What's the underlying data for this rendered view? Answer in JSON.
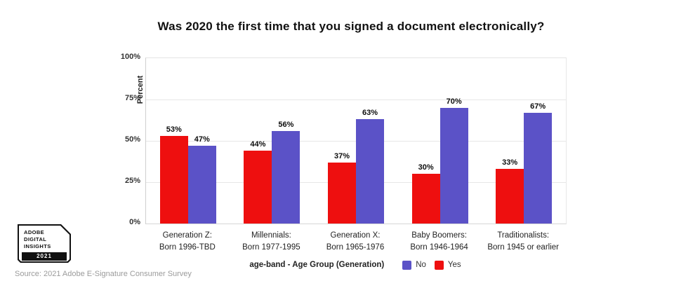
{
  "title": "Was 2020 the first time that you signed a document electronically?",
  "ylabel": "Percent",
  "chart_data": {
    "type": "bar",
    "title": "Was 2020 the first time that you signed a document electronically?",
    "xlabel": "age-band - Age Group (Generation)",
    "ylabel": "Percent",
    "ylim": [
      0,
      100
    ],
    "grid": true,
    "legend_position": "bottom",
    "y_ticks": [
      {
        "value": 100,
        "label": "100%"
      },
      {
        "value": 75,
        "label": "75%"
      },
      {
        "value": 50,
        "label": "50%"
      },
      {
        "value": 25,
        "label": "25%"
      },
      {
        "value": 0,
        "label": "0%"
      }
    ],
    "categories": [
      {
        "line1": "Generation Z:",
        "line2": "Born 1996-TBD"
      },
      {
        "line1": "Millennials:",
        "line2": "Born 1977-1995"
      },
      {
        "line1": "Generation X:",
        "line2": "Born 1965-1976"
      },
      {
        "line1": "Baby Boomers:",
        "line2": "Born 1946-1964"
      },
      {
        "line1": "Traditionalists:",
        "line2": "Born 1945 or earlier"
      }
    ],
    "series": [
      {
        "name": "Yes",
        "color": "#ee0f0f",
        "values": [
          53,
          44,
          37,
          30,
          33
        ],
        "labels": [
          "53%",
          "44%",
          "37%",
          "30%",
          "33%"
        ]
      },
      {
        "name": "No",
        "color": "#5b52c7",
        "values": [
          47,
          56,
          63,
          70,
          67
        ],
        "labels": [
          "47%",
          "56%",
          "63%",
          "70%",
          "67%"
        ]
      }
    ]
  },
  "legend": {
    "title": "age-band - Age Group (Generation)",
    "items": [
      {
        "label": "No",
        "color": "#5b52c7"
      },
      {
        "label": "Yes",
        "color": "#ee0f0f"
      }
    ]
  },
  "badge": {
    "line1": "ADOBE",
    "line2": "DIGITAL",
    "line3": "INSIGHTS",
    "year": "2021"
  },
  "source": "Source: 2021 Adobe E-Signature Consumer Survey",
  "colors": {
    "yes": "#ee0f0f",
    "no": "#5b52c7"
  }
}
